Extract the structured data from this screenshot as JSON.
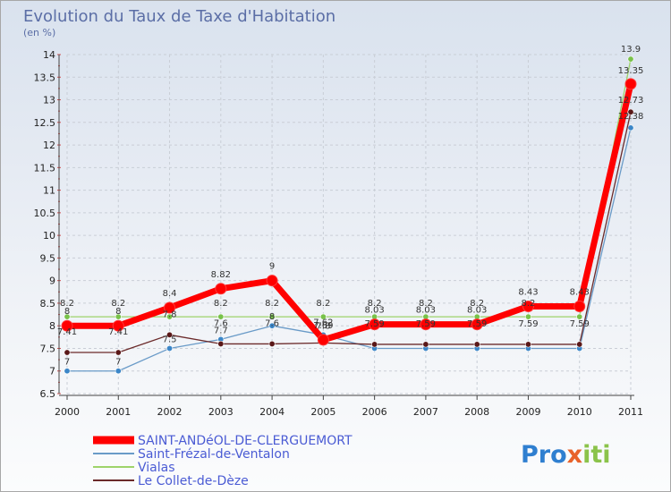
{
  "chart_data": {
    "type": "line",
    "title": "Evolution du Taux de Taxe d'Habitation",
    "subtitle": "(en %)",
    "xlabel": "",
    "ylabel": "",
    "categories": [
      "2000",
      "2001",
      "2002",
      "2003",
      "2004",
      "2005",
      "2006",
      "2007",
      "2008",
      "2009",
      "2010",
      "2011"
    ],
    "ylim": [
      6.5,
      14
    ],
    "yticks": [
      "6.5",
      "7",
      "7.5",
      "8",
      "8.5",
      "9",
      "9.5",
      "10",
      "10.5",
      "11",
      "11.5",
      "12",
      "12.5",
      "13",
      "13.5",
      "14"
    ],
    "grid": true,
    "legend_position": "bottom-left",
    "brand": {
      "parts": [
        "Pro",
        "x",
        "iti"
      ],
      "colors": [
        "#2f7fd0",
        "#e8622a",
        "#8bc34a"
      ]
    },
    "series": [
      {
        "name": "Saint-Frézal-de-Ventalon",
        "color": "#6a9bc8",
        "marker": "#3b86c8",
        "values": [
          7,
          7,
          7.5,
          7.7,
          8,
          7.8,
          7.5,
          7.5,
          7.5,
          7.5,
          7.5,
          12.38
        ],
        "labels": [
          "7",
          "7",
          "7.5",
          "7.7",
          "8",
          "7.8",
          "",
          "",
          "",
          "",
          "",
          "12.38"
        ]
      },
      {
        "name": "Vialas",
        "color": "#9ed36a",
        "marker": "#78c24a",
        "values": [
          8.2,
          8.2,
          8.2,
          8.2,
          8.2,
          8.2,
          8.2,
          8.2,
          8.2,
          8.2,
          8.2,
          13.9
        ],
        "labels": [
          "8.2",
          "8.2",
          "",
          "8.2",
          "8.2",
          "8.2",
          "8.2",
          "8.2",
          "8.2",
          "8.2",
          "",
          "13.9"
        ]
      },
      {
        "name": "Le Collet-de-Dèze",
        "color": "#6b2a2a",
        "marker": "#5a1818",
        "values": [
          7.41,
          7.41,
          7.8,
          7.6,
          7.6,
          7.62,
          7.59,
          7.59,
          7.59,
          7.59,
          7.59,
          12.73
        ],
        "labels": [
          "7.41",
          "7.41",
          "7.8",
          "7.6",
          "7.6",
          "7.62",
          "7.59",
          "7.59",
          "7.59",
          "7.59",
          "7.59",
          "12.73"
        ]
      },
      {
        "name": "SAINT-ANDéOL-DE-CLERGUEMORT",
        "color": "#ff0000",
        "marker": "#ff0000",
        "values": [
          8,
          8,
          8.4,
          8.82,
          9,
          7.69,
          8.03,
          8.03,
          8.03,
          8.43,
          8.43,
          13.35
        ],
        "labels": [
          "8",
          "8",
          "8.4",
          "8.82",
          "9",
          "7.69",
          "8.03",
          "8.03",
          "8.03",
          "8.43",
          "8.43",
          "13.35"
        ]
      }
    ]
  }
}
